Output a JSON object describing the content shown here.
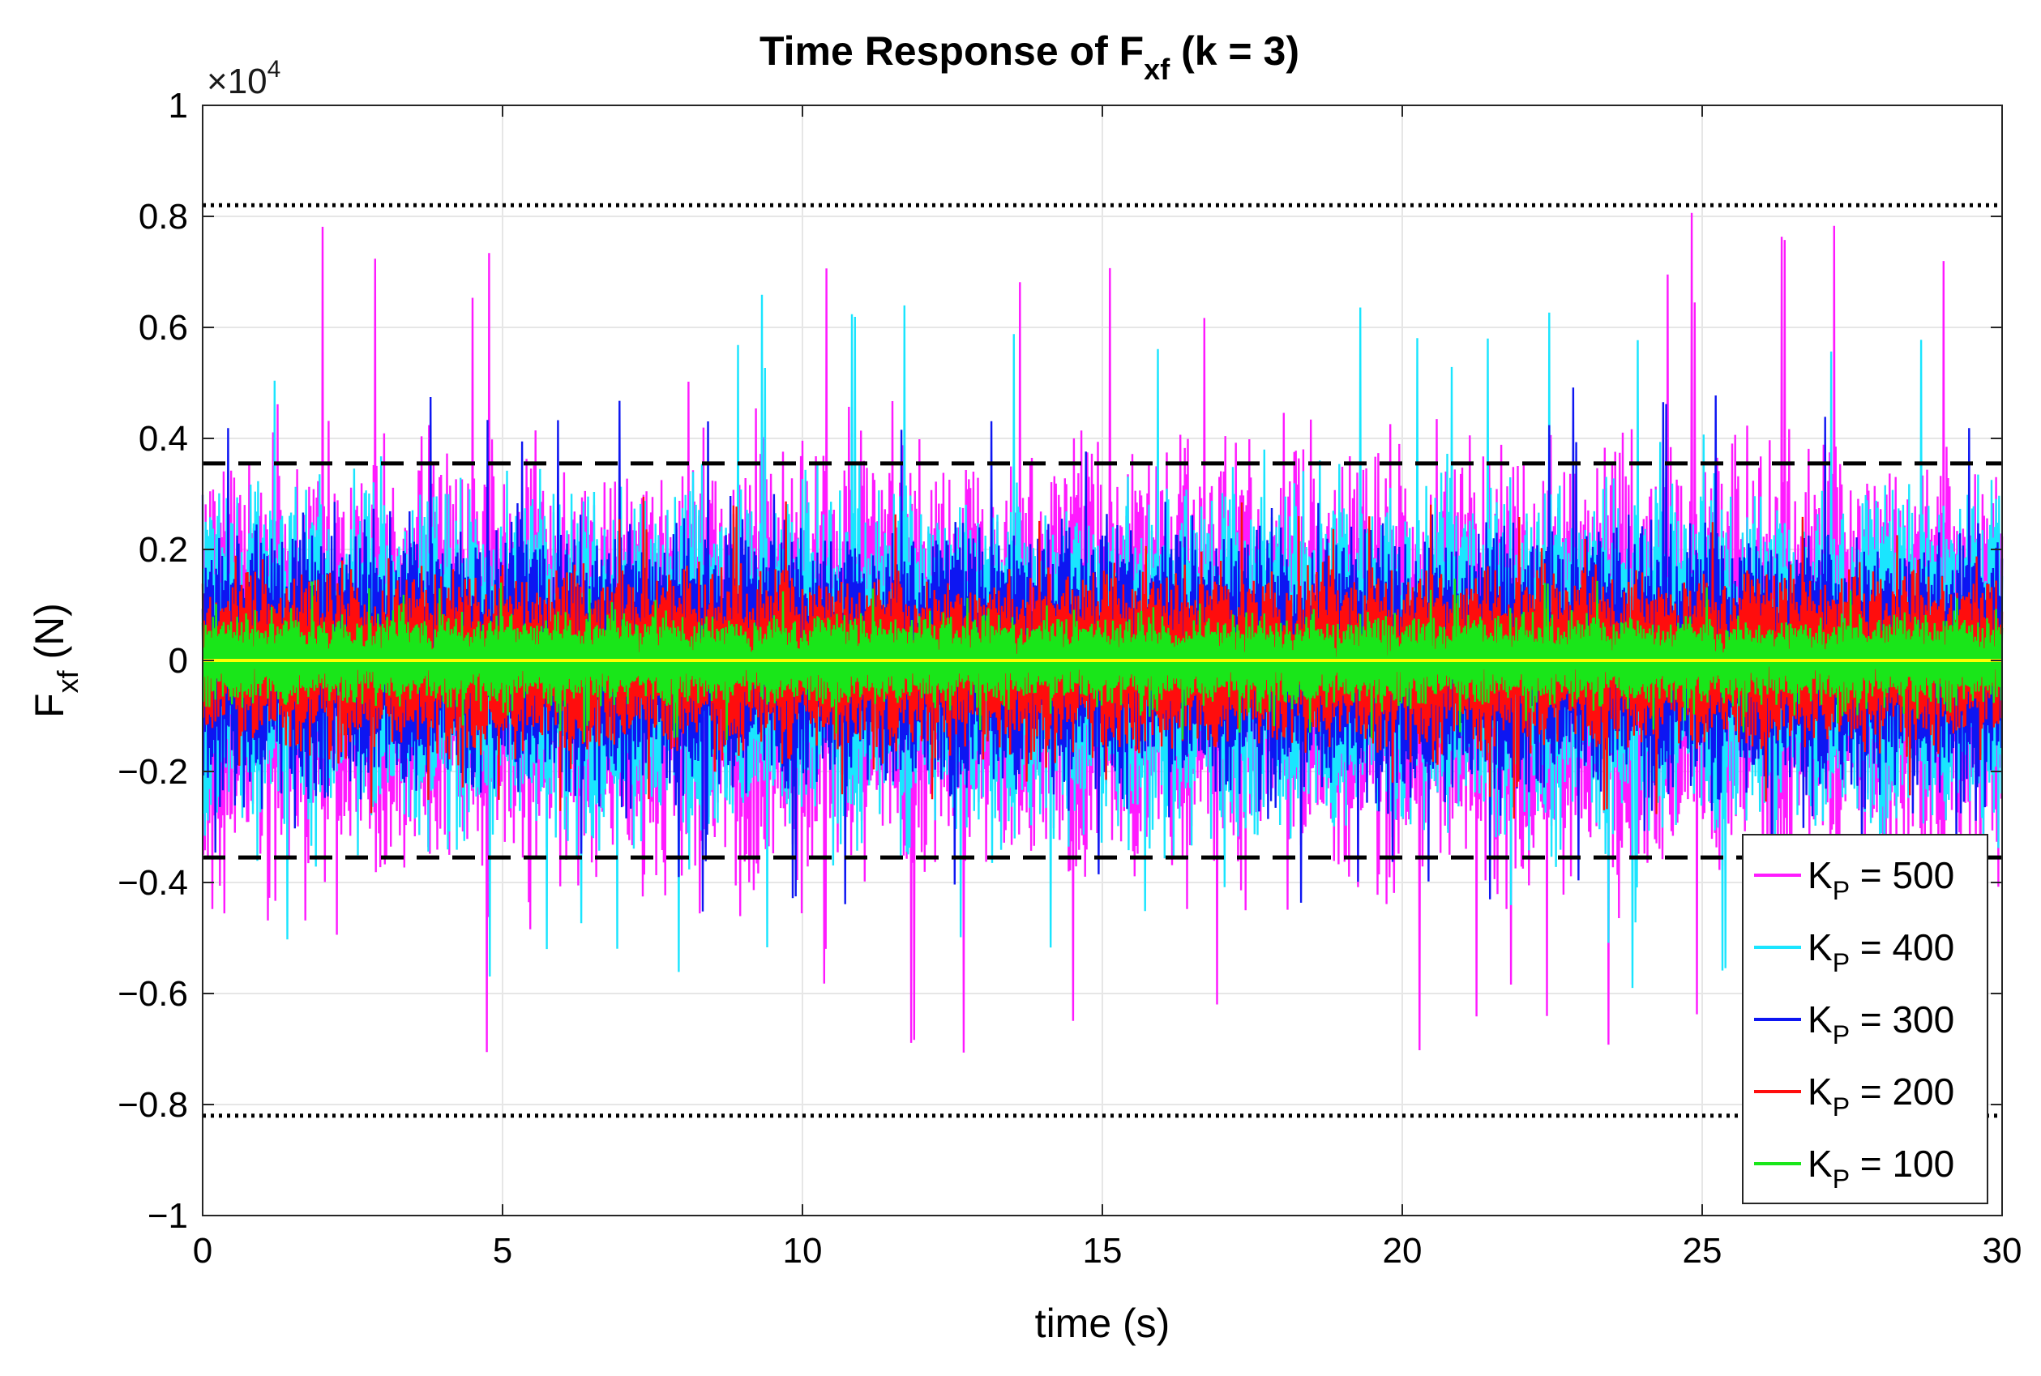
{
  "chart_data": {
    "type": "line",
    "title": {
      "main": "Time Response of F",
      "sub": "xf",
      "suffix": " (k = 3)"
    },
    "xlabel": "time (s)",
    "ylabel": {
      "main": "F",
      "sub": "xf",
      "suffix": " (N)"
    },
    "exponent_label": {
      "base": "×10",
      "power": "4"
    },
    "xlim": [
      0,
      30
    ],
    "ylim": [
      -1,
      1
    ],
    "xticks": [
      0,
      5,
      10,
      15,
      20,
      25,
      30
    ],
    "xtick_labels": [
      "0",
      "5",
      "10",
      "15",
      "20",
      "25",
      "30"
    ],
    "yticks": [
      -1,
      -0.8,
      -0.6,
      -0.4,
      -0.2,
      0,
      0.2,
      0.4,
      0.6,
      0.8,
      1
    ],
    "ytick_labels": [
      "−1",
      "−0.8",
      "−0.6",
      "−0.4",
      "−0.2",
      "0",
      "0.2",
      "0.4",
      "0.6",
      "0.8",
      "1"
    ],
    "grid": true,
    "legend_position": "bottom-right",
    "series": [
      {
        "name": "K",
        "sub": "P",
        "value_label": " = 500",
        "kp": 500,
        "color": "#ff1aff",
        "band_std": 0.185,
        "peak_max": 0.82,
        "peak_min": -0.74
      },
      {
        "name": "K",
        "sub": "P",
        "value_label": " = 400",
        "kp": 400,
        "color": "#1ae5ff",
        "band_std": 0.15,
        "peak_max": 0.67,
        "peak_min": -0.6
      },
      {
        "name": "K",
        "sub": "P",
        "value_label": " = 300",
        "kp": 300,
        "color": "#0d16f2",
        "band_std": 0.115,
        "peak_max": 0.5,
        "peak_min": -0.46
      },
      {
        "name": "K",
        "sub": "P",
        "value_label": " = 200",
        "kp": 200,
        "color": "#ff0d0d",
        "band_std": 0.078,
        "peak_max": 0.3,
        "peak_min": -0.29
      },
      {
        "name": "K",
        "sub": "P",
        "value_label": " = 100",
        "kp": 100,
        "color": "#19e619",
        "band_std": 0.04,
        "peak_max": 0.15,
        "peak_min": -0.15
      }
    ],
    "reference_lines": [
      {
        "style": "dotted",
        "y": 0.82,
        "color": "#000000"
      },
      {
        "style": "dotted",
        "y": -0.82,
        "color": "#000000"
      },
      {
        "style": "dashed",
        "y": 0.355,
        "color": "#000000"
      },
      {
        "style": "dashed",
        "y": -0.355,
        "color": "#000000"
      },
      {
        "style": "solid",
        "y": 0,
        "color": "#ffff00"
      }
    ]
  }
}
